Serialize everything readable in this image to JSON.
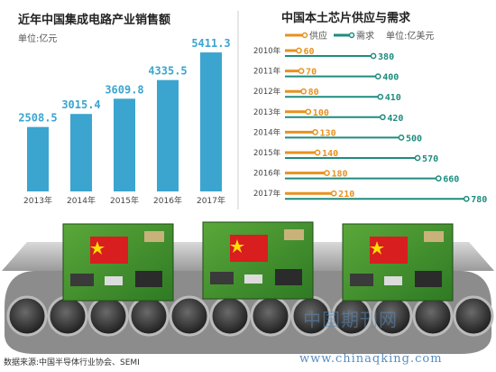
{
  "chart_data": [
    {
      "type": "bar",
      "title": "近年中国集成电路产业销售额",
      "unit_label": "单位:亿元",
      "categories": [
        "2013年",
        "2014年",
        "2015年",
        "2016年",
        "2017年"
      ],
      "values": [
        2508.5,
        3015.4,
        3609.8,
        4335.5,
        5411.3
      ],
      "value_labels": [
        "2508.5",
        "3015.4",
        "3609.8",
        "4335.5",
        "5411.3"
      ],
      "ylim": [
        0,
        5800
      ],
      "bar_color": "#3ba5cf"
    },
    {
      "type": "bar",
      "orientation": "horizontal",
      "title": "中国本土芯片供应与需求",
      "unit_label": "单位:亿美元",
      "categories": [
        "2010年",
        "2011年",
        "2012年",
        "2013年",
        "2014年",
        "2015年",
        "2016年",
        "2017年"
      ],
      "xlim": [
        0,
        800
      ],
      "series": [
        {
          "name": "供应",
          "values": [
            60,
            70,
            80,
            100,
            130,
            140,
            180,
            210
          ],
          "value_labels": [
            "60",
            "70",
            "80",
            "100",
            "130",
            "140",
            "180",
            "210"
          ],
          "color": "#e8911e"
        },
        {
          "name": "需求",
          "values": [
            380,
            400,
            410,
            420,
            500,
            570,
            660,
            780
          ],
          "value_labels": [
            "380",
            "400",
            "410",
            "420",
            "500",
            "570",
            "660",
            "780"
          ],
          "color": "#1e8c7e"
        }
      ]
    }
  ],
  "footer": "数据来源:中国半导体行业协会、SEMI",
  "watermark_cn": "中国期刊网",
  "watermark_url": "www.chinaqking.com"
}
